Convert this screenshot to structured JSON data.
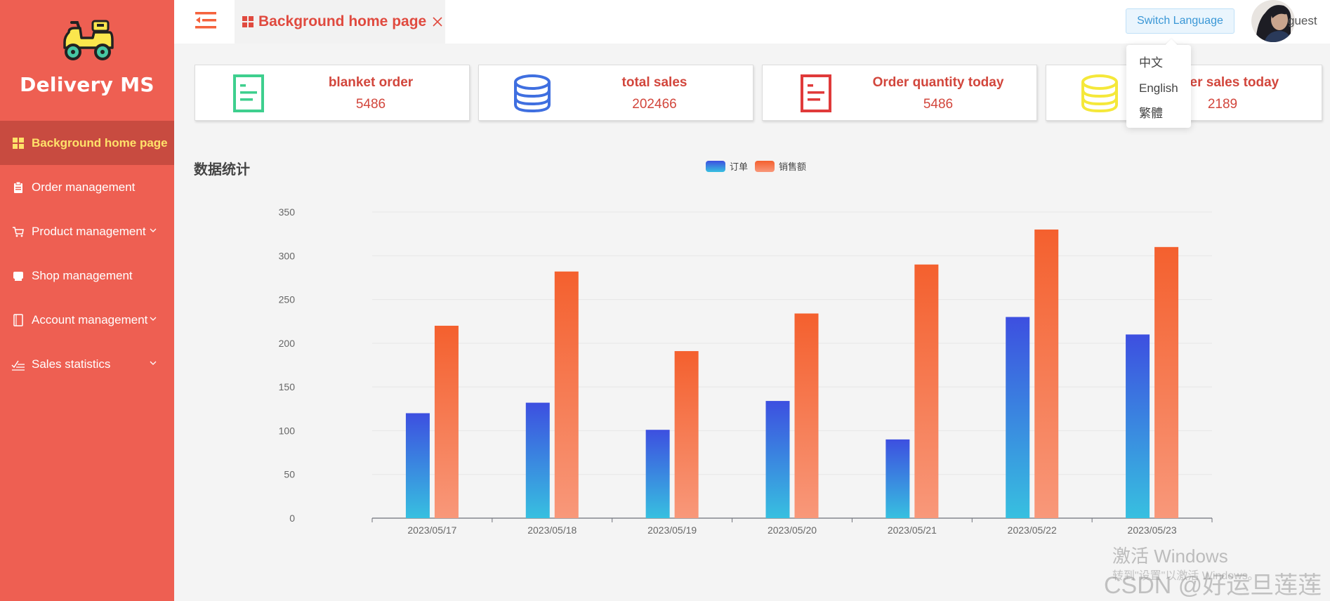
{
  "app": {
    "title": "Delivery MS"
  },
  "sidebar": {
    "items": [
      {
        "label": "Background home page",
        "icon": "grid-icon",
        "active": true,
        "has_submenu": false
      },
      {
        "label": "Order management",
        "icon": "clipboard-icon",
        "active": false,
        "has_submenu": false
      },
      {
        "label": "Product management",
        "icon": "cart-icon",
        "active": false,
        "has_submenu": true
      },
      {
        "label": "Shop management",
        "icon": "shop-icon",
        "active": false,
        "has_submenu": false
      },
      {
        "label": "Account management",
        "icon": "notebook-icon",
        "active": false,
        "has_submenu": true
      },
      {
        "label": "Sales statistics",
        "icon": "chart-line-icon",
        "active": false,
        "has_submenu": true
      }
    ]
  },
  "header": {
    "tab_label": "Background home page",
    "switch_language": "Switch Language",
    "username": "guest"
  },
  "language_menu": {
    "options": [
      "中文",
      "English",
      "繁體"
    ]
  },
  "cards": [
    {
      "title": "blanket order",
      "value": "5486",
      "icon": "document-icon",
      "color": "#3ecf8e"
    },
    {
      "title": "total sales",
      "value": "202466",
      "icon": "database-icon",
      "color": "#3f6fe0"
    },
    {
      "title": "Order quantity today",
      "value": "5486",
      "icon": "document-icon",
      "color": "#e03a3a"
    },
    {
      "title": "Order sales today",
      "value": "2189",
      "icon": "database-icon",
      "color": "#f5e83a"
    }
  ],
  "chart_data": {
    "type": "bar",
    "title": "数据统计",
    "categories": [
      "2023/05/17",
      "2023/05/18",
      "2023/05/19",
      "2023/05/20",
      "2023/05/21",
      "2023/05/22",
      "2023/05/23"
    ],
    "series": [
      {
        "name": "订单",
        "values": [
          120,
          132,
          101,
          134,
          90,
          230,
          210
        ],
        "color_top": "#3d4fe0",
        "color_bottom": "#37c0e0"
      },
      {
        "name": "销售额",
        "values": [
          220,
          282,
          191,
          234,
          290,
          330,
          310
        ],
        "color_top": "#f4602e",
        "color_bottom": "#f8987a"
      }
    ],
    "ylim": [
      0,
      350
    ],
    "yticks": [
      "0",
      "50",
      "100",
      "150",
      "200",
      "250",
      "300",
      "350"
    ],
    "grid": true,
    "legend_position": "top-center"
  },
  "watermark": {
    "line1": "激活 Windows",
    "line2": "转到\"设置\"以激活 Windows。",
    "credit": "CSDN @好运旦莲莲"
  }
}
